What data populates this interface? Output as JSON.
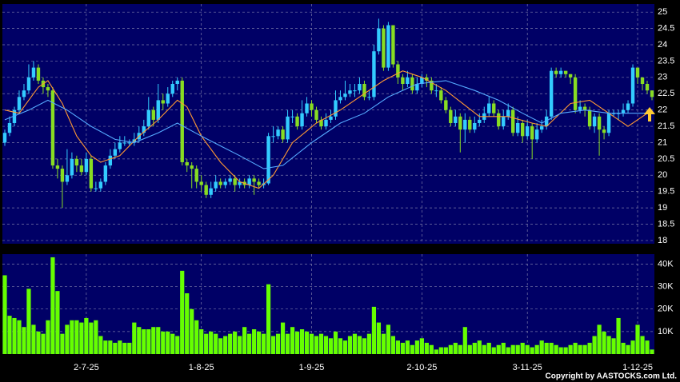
{
  "chart_data": {
    "type": "candlestick",
    "up_color": "#33ccff",
    "down_color": "#88dd22",
    "volume_color": "#66ff00",
    "grid": true,
    "ylim": [
      17.9,
      25.25
    ],
    "yticks": [
      18,
      18.5,
      19,
      19.5,
      20,
      20.5,
      21,
      21.5,
      22,
      22.5,
      23,
      23.5,
      24,
      24.5,
      25
    ],
    "volume_ylim": [
      0,
      44400
    ],
    "volume_yticks": [
      {
        "value": 10000,
        "label": "10K"
      },
      {
        "value": 20000,
        "label": "20K"
      },
      {
        "value": 30000,
        "label": "30K"
      },
      {
        "value": 40000,
        "label": "40K"
      }
    ],
    "xlabels": [
      {
        "index": 17,
        "label": "2-7-25"
      },
      {
        "index": 41,
        "label": "1-8-25"
      },
      {
        "index": 64,
        "label": "1-9-25"
      },
      {
        "index": 87,
        "label": "2-10-25"
      },
      {
        "index": 109,
        "label": "3-11-25"
      },
      {
        "index": 132,
        "label": "1-12-25"
      }
    ],
    "open": [
      21.0,
      21.3,
      21.6,
      22.0,
      22.4,
      22.6,
      23.0,
      23.3,
      22.9,
      22.7,
      22.6,
      20.3,
      20.2,
      19.8,
      20.0,
      20.5,
      20.3,
      20.1,
      20.5,
      19.6,
      19.6,
      19.8,
      20.3,
      20.6,
      20.8,
      21.0,
      21.0,
      21.0,
      21.1,
      21.3,
      21.5,
      22.0,
      21.7,
      22.3,
      22.2,
      22.5,
      22.8,
      22.9,
      20.4,
      20.3,
      20.2,
      19.8,
      19.7,
      19.4,
      19.6,
      19.8,
      19.7,
      19.8,
      19.9,
      19.7,
      19.8,
      19.7,
      19.9,
      19.8,
      19.7,
      19.75,
      21.2,
      21.2,
      21.4,
      21.1,
      21.8,
      21.8,
      21.5,
      21.9,
      22.2,
      22.0,
      21.7,
      21.5,
      21.7,
      21.8,
      22.3,
      22.4,
      22.5,
      22.6,
      22.6,
      22.8,
      22.4,
      22.4,
      23.8,
      24.5,
      23.3,
      24.6,
      23.4,
      23.0,
      22.8,
      23.0,
      22.6,
      22.8,
      23.0,
      22.9,
      22.6,
      22.6,
      22.3,
      22.0,
      21.6,
      21.8,
      21.4,
      21.7,
      21.4,
      21.6,
      21.7,
      21.9,
      22.2,
      21.9,
      21.5,
      21.8,
      22.0,
      21.3,
      21.6,
      21.2,
      21.5,
      21.1,
      21.4,
      21.5,
      21.8,
      23.2,
      23.1,
      23.2,
      23.1,
      23.0,
      22.0,
      22.1,
      22.0,
      21.5,
      21.8,
      21.4,
      21.3,
      21.9,
      21.9,
      21.9,
      22.0,
      22.2,
      23.3,
      23.0,
      22.8,
      22.6
    ],
    "high": [
      21.4,
      21.8,
      22.1,
      22.6,
      22.8,
      23.4,
      23.5,
      23.4,
      23.0,
      22.8,
      22.7,
      20.5,
      20.3,
      20.8,
      20.7,
      20.6,
      20.5,
      20.7,
      20.6,
      19.8,
      19.9,
      20.4,
      20.8,
      21.0,
      21.2,
      21.2,
      21.1,
      21.3,
      21.5,
      21.7,
      22.4,
      22.1,
      22.8,
      22.5,
      22.7,
      22.9,
      23.0,
      23.0,
      20.5,
      20.4,
      20.3,
      20.0,
      19.8,
      19.8,
      20.0,
      19.9,
      19.9,
      20.0,
      20.0,
      19.9,
      19.9,
      20.0,
      20.0,
      19.9,
      19.9,
      21.3,
      21.5,
      21.5,
      21.5,
      22.0,
      22.0,
      21.9,
      22.3,
      22.4,
      22.3,
      22.1,
      21.8,
      21.9,
      22.0,
      22.6,
      22.6,
      22.9,
      22.8,
      22.8,
      23.0,
      22.9,
      22.6,
      24.0,
      24.8,
      24.6,
      24.7,
      24.6,
      23.5,
      23.1,
      23.2,
      23.1,
      23.0,
      23.1,
      23.1,
      23.0,
      22.8,
      22.7,
      22.4,
      22.1,
      22.0,
      21.9,
      21.9,
      21.8,
      21.8,
      21.9,
      22.1,
      22.4,
      22.3,
      22.0,
      22.0,
      22.2,
      22.1,
      21.8,
      21.7,
      21.7,
      21.6,
      21.6,
      21.7,
      22.0,
      23.3,
      23.3,
      23.3,
      23.2,
      23.1,
      23.1,
      22.3,
      22.2,
      22.1,
      21.9,
      21.9,
      21.5,
      22.0,
      22.0,
      22.0,
      22.2,
      22.3,
      23.4,
      23.3,
      23.0,
      22.9,
      22.6
    ],
    "low": [
      20.9,
      21.2,
      21.5,
      21.9,
      22.3,
      22.5,
      22.9,
      22.8,
      22.5,
      22.4,
      20.2,
      19.9,
      19.0,
      19.7,
      19.9,
      20.1,
      20.0,
      20.0,
      19.5,
      19.5,
      19.5,
      19.7,
      20.2,
      20.5,
      20.7,
      20.9,
      20.9,
      20.9,
      21.0,
      21.2,
      21.4,
      21.5,
      21.6,
      22.0,
      22.1,
      22.4,
      22.6,
      20.3,
      20.1,
      19.6,
      19.6,
      19.5,
      19.3,
      19.3,
      19.5,
      19.6,
      19.6,
      19.7,
      19.5,
      19.6,
      19.6,
      19.6,
      19.4,
      19.6,
      19.6,
      19.7,
      21.0,
      21.1,
      21.0,
      21.0,
      21.6,
      21.4,
      21.4,
      21.8,
      21.8,
      21.6,
      21.4,
      21.4,
      21.6,
      21.7,
      22.2,
      22.3,
      22.4,
      22.4,
      22.5,
      22.3,
      22.3,
      22.3,
      23.7,
      23.2,
      23.2,
      23.3,
      22.8,
      22.6,
      22.7,
      22.5,
      22.5,
      22.7,
      22.7,
      22.5,
      22.4,
      22.2,
      21.9,
      21.5,
      21.5,
      20.7,
      21.0,
      21.3,
      21.3,
      21.5,
      21.6,
      21.8,
      21.8,
      21.4,
      21.4,
      21.7,
      21.2,
      21.2,
      21.0,
      21.1,
      20.5,
      21.0,
      21.3,
      21.4,
      21.7,
      23.0,
      23.0,
      23.0,
      22.8,
      21.9,
      21.9,
      21.8,
      21.4,
      21.3,
      20.6,
      21.1,
      21.2,
      21.8,
      21.7,
      21.8,
      21.9,
      22.1,
      22.8,
      22.6,
      22.5,
      22.3
    ],
    "close": [
      21.3,
      21.6,
      22.0,
      22.4,
      22.6,
      23.0,
      23.3,
      22.9,
      22.7,
      22.6,
      20.3,
      20.2,
      19.8,
      20.0,
      20.5,
      20.3,
      20.1,
      20.5,
      19.6,
      19.6,
      19.8,
      20.3,
      20.6,
      20.8,
      21.0,
      21.0,
      21.0,
      21.1,
      21.3,
      21.5,
      22.0,
      21.7,
      22.3,
      22.2,
      22.5,
      22.8,
      22.9,
      20.4,
      20.3,
      20.2,
      19.8,
      19.7,
      19.4,
      19.6,
      19.8,
      19.7,
      19.8,
      19.9,
      19.7,
      19.8,
      19.7,
      19.9,
      19.8,
      19.7,
      19.75,
      21.2,
      21.2,
      21.4,
      21.1,
      21.8,
      21.8,
      21.5,
      21.9,
      22.2,
      22.0,
      21.7,
      21.5,
      21.7,
      21.8,
      22.3,
      22.4,
      22.5,
      22.6,
      22.6,
      22.8,
      22.4,
      22.4,
      23.8,
      24.5,
      23.3,
      24.6,
      23.4,
      23.0,
      22.8,
      23.0,
      22.6,
      22.8,
      23.0,
      22.9,
      22.6,
      22.6,
      22.3,
      22.0,
      21.6,
      21.8,
      21.4,
      21.7,
      21.4,
      21.6,
      21.7,
      21.9,
      22.2,
      21.9,
      21.5,
      21.8,
      22.0,
      21.3,
      21.6,
      21.2,
      21.5,
      21.1,
      21.4,
      21.5,
      21.8,
      23.2,
      23.1,
      23.2,
      23.1,
      23.0,
      22.0,
      22.1,
      22.0,
      21.5,
      21.8,
      21.4,
      21.3,
      21.9,
      21.9,
      21.9,
      22.0,
      22.2,
      23.3,
      23.0,
      22.8,
      22.6,
      22.4
    ],
    "volume": [
      35000,
      17000,
      16000,
      15000,
      12000,
      29000,
      13000,
      10000,
      9000,
      15000,
      43000,
      28000,
      9000,
      13000,
      15000,
      15000,
      14000,
      16000,
      14000,
      15000,
      8000,
      6000,
      6000,
      5000,
      6000,
      5000,
      5000,
      14000,
      12000,
      11000,
      11000,
      12000,
      12000,
      10000,
      10000,
      9000,
      8000,
      37000,
      27000,
      20000,
      15000,
      11000,
      9000,
      10000,
      9000,
      7000,
      8000,
      9000,
      10000,
      8000,
      12000,
      9000,
      11000,
      10000,
      9000,
      31000,
      8000,
      9000,
      14000,
      9000,
      12000,
      10000,
      11000,
      10000,
      9000,
      8000,
      9000,
      8000,
      7000,
      10000,
      7000,
      6000,
      8000,
      9000,
      8000,
      7000,
      9000,
      21000,
      14000,
      9000,
      13000,
      8000,
      6000,
      5000,
      6000,
      4000,
      6000,
      7000,
      5000,
      4000,
      2000,
      3000,
      3000,
      4000,
      5000,
      4000,
      12000,
      4000,
      5000,
      6000,
      4000,
      5000,
      3000,
      4000,
      5000,
      3000,
      4000,
      4000,
      5000,
      4000,
      3000,
      4000,
      6000,
      5000,
      5000,
      4000,
      3000,
      3000,
      4000,
      5000,
      4000,
      4000,
      5000,
      8000,
      13000,
      10000,
      8000,
      7000,
      16000,
      5000,
      4000,
      6000,
      13000,
      8000,
      6000,
      2000
    ],
    "series": [
      {
        "color": "#ff9933",
        "x": [
          0,
          3,
          7,
          9,
          12,
          15,
          18,
          20,
          24,
          28,
          32,
          36,
          38,
          41,
          45,
          49,
          53,
          56,
          60,
          65,
          70,
          75,
          79,
          83,
          87,
          92,
          99,
          105,
          110,
          113,
          118,
          122,
          127,
          130,
          135
        ],
        "values": [
          22.0,
          21.9,
          22.7,
          22.9,
          22.2,
          21.2,
          20.6,
          20.4,
          20.6,
          21.2,
          21.7,
          22.3,
          22.1,
          21.2,
          20.4,
          19.8,
          19.6,
          20.0,
          21.0,
          21.6,
          22.0,
          22.5,
          22.9,
          23.2,
          23.0,
          22.6,
          21.8,
          21.8,
          21.6,
          21.5,
          22.2,
          22.3,
          21.8,
          21.5,
          22.0
        ]
      },
      {
        "color": "#55aaff",
        "x": [
          0,
          5,
          9,
          13,
          18,
          23,
          27,
          32,
          36,
          41,
          45,
          49,
          54,
          58,
          64,
          70,
          75,
          80,
          86,
          92,
          98,
          103,
          108,
          112,
          116,
          121,
          126,
          130,
          135
        ],
        "values": [
          21.7,
          22.0,
          22.3,
          22.0,
          21.5,
          21.1,
          21.0,
          21.3,
          21.6,
          21.2,
          20.9,
          20.6,
          20.2,
          20.3,
          21.0,
          21.6,
          21.9,
          22.4,
          22.8,
          22.9,
          22.6,
          22.3,
          21.9,
          21.6,
          21.9,
          22.0,
          21.9,
          21.9,
          21.9
        ]
      }
    ],
    "copyright": "Copyright by AASTOCKS.com Ltd."
  }
}
